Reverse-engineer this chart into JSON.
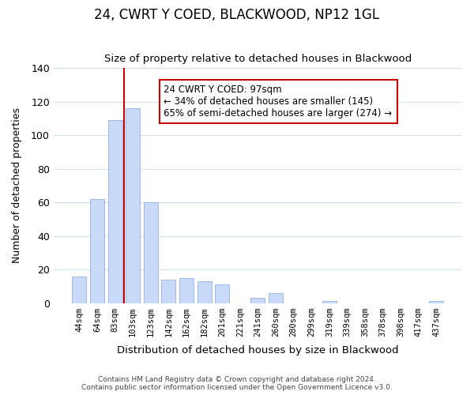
{
  "title": "24, CWRT Y COED, BLACKWOOD, NP12 1GL",
  "subtitle": "Size of property relative to detached houses in Blackwood",
  "xlabel": "Distribution of detached houses by size in Blackwood",
  "ylabel": "Number of detached properties",
  "bar_labels": [
    "44sqm",
    "64sqm",
    "83sqm",
    "103sqm",
    "123sqm",
    "142sqm",
    "162sqm",
    "182sqm",
    "201sqm",
    "221sqm",
    "241sqm",
    "260sqm",
    "280sqm",
    "299sqm",
    "319sqm",
    "339sqm",
    "358sqm",
    "378sqm",
    "398sqm",
    "417sqm",
    "437sqm"
  ],
  "bar_values": [
    16,
    62,
    109,
    116,
    60,
    14,
    15,
    13,
    11,
    0,
    3,
    6,
    0,
    0,
    1,
    0,
    0,
    0,
    0,
    0,
    1
  ],
  "bar_color": "#c9daf8",
  "bar_edge_color": "#a0b8e8",
  "vline_x": 3,
  "vline_color": "#cc0000",
  "ylim": [
    0,
    140
  ],
  "yticks": [
    0,
    20,
    40,
    60,
    80,
    100,
    120,
    140
  ],
  "annotation_title": "24 CWRT Y COED: 97sqm",
  "annotation_line1": "← 34% of detached houses are smaller (145)",
  "annotation_line2": "65% of semi-detached houses are larger (274) →",
  "annotation_box_color": "#ffffff",
  "annotation_box_edge": "#cc0000",
  "footer_line1": "Contains HM Land Registry data © Crown copyright and database right 2024.",
  "footer_line2": "Contains public sector information licensed under the Open Government Licence v3.0.",
  "background_color": "#ffffff",
  "grid_color": "#d0e0f0"
}
